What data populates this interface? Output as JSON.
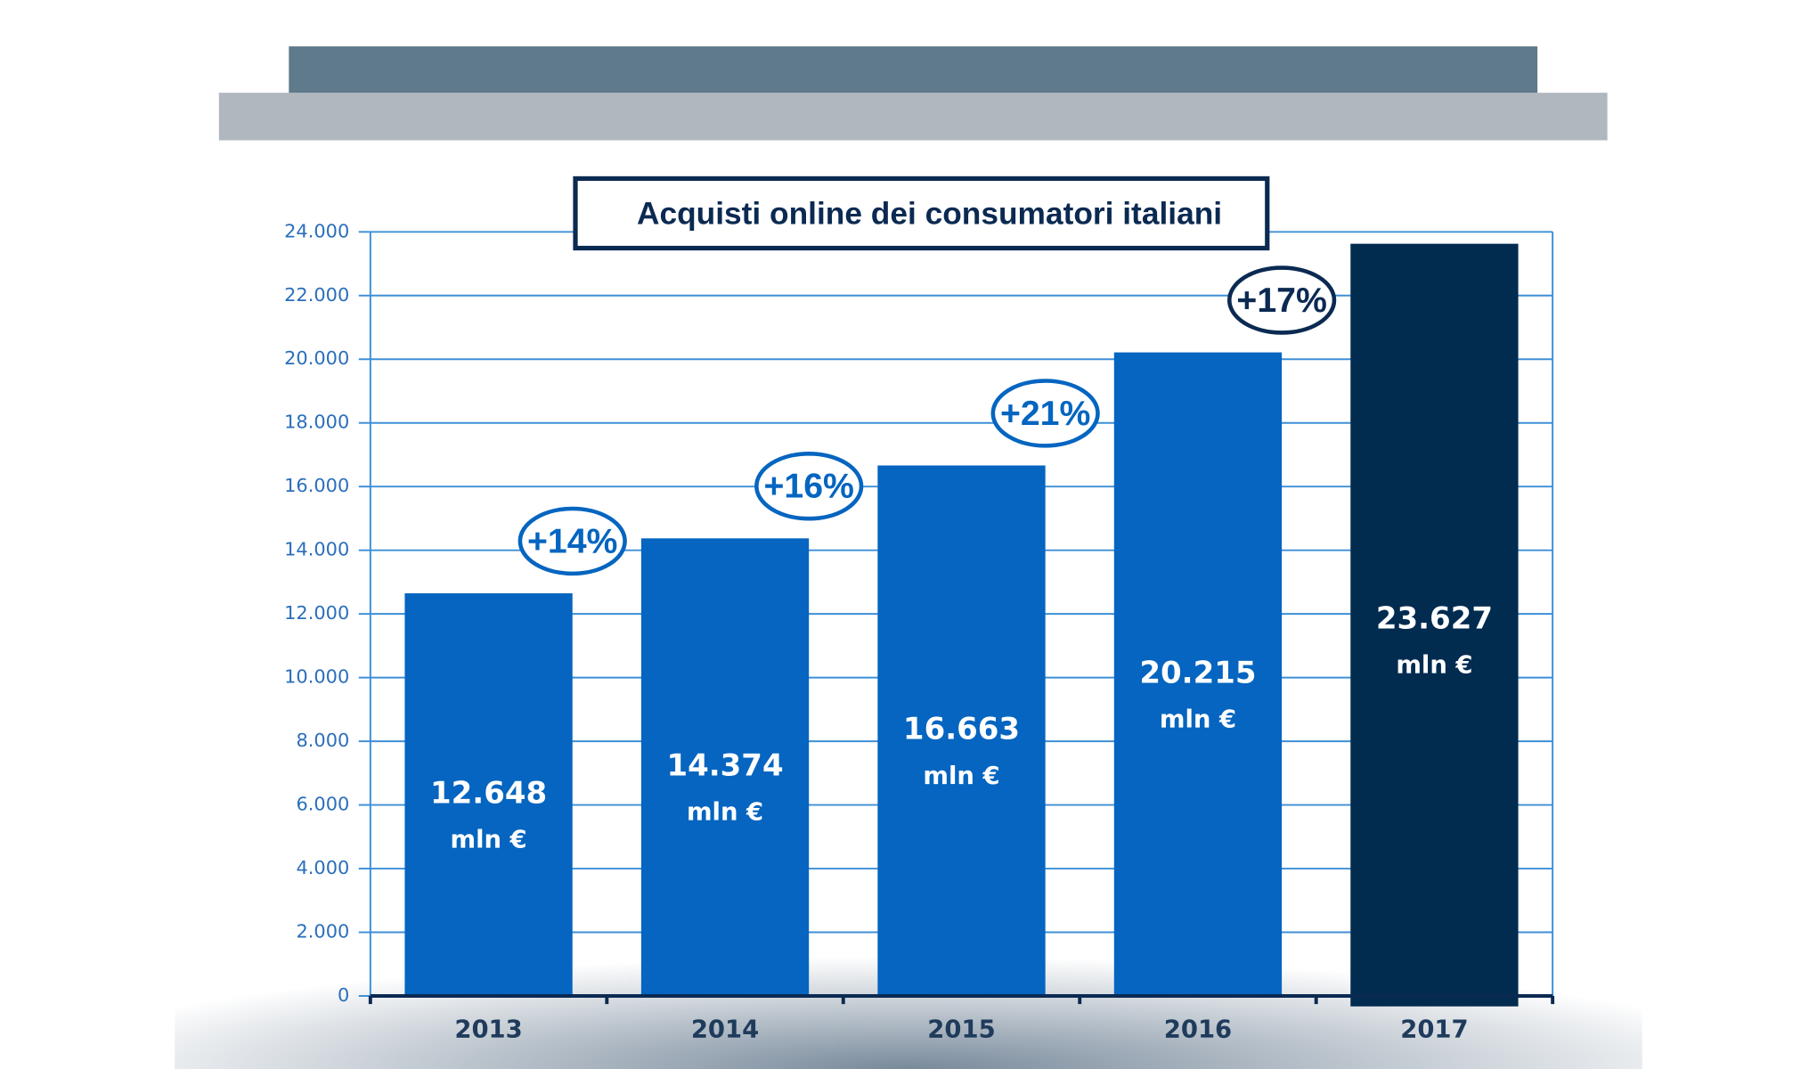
{
  "chart_data": {
    "type": "bar",
    "title": "Acquisti online dei consumatori italiani",
    "categories": [
      "2013",
      "2014",
      "2015",
      "2016",
      "2017"
    ],
    "values": [
      12648,
      14374,
      16663,
      20215,
      23627
    ],
    "value_labels": [
      "12.648",
      "14.374",
      "16.663",
      "20.215",
      "23.627"
    ],
    "unit_label": "mln €",
    "colors": [
      "#0565c0",
      "#0565c0",
      "#0565c0",
      "#0565c0",
      "#022b50"
    ],
    "growth_labels": [
      "+14%",
      "+16%",
      "+21%",
      "+17%"
    ],
    "ylim": [
      0,
      24000
    ],
    "yticks": [
      0,
      {
        "value": 2000,
        "label": "2.000"
      },
      {
        "value": 4000,
        "label": "4.000"
      },
      {
        "value": 6000,
        "label": "6.000"
      },
      {
        "value": 8000,
        "label": "8.000"
      },
      {
        "value": 10000,
        "label": "10.000"
      },
      {
        "value": 12000,
        "label": "12.000"
      },
      {
        "value": 14000,
        "label": "14.000"
      },
      {
        "value": 16000,
        "label": "16.000"
      },
      {
        "value": 18000,
        "label": "18.000"
      },
      {
        "value": 20000,
        "label": "20.000"
      },
      {
        "value": 22000,
        "label": "22.000"
      },
      {
        "value": 24000,
        "label": "24.000"
      }
    ],
    "grid": true
  }
}
